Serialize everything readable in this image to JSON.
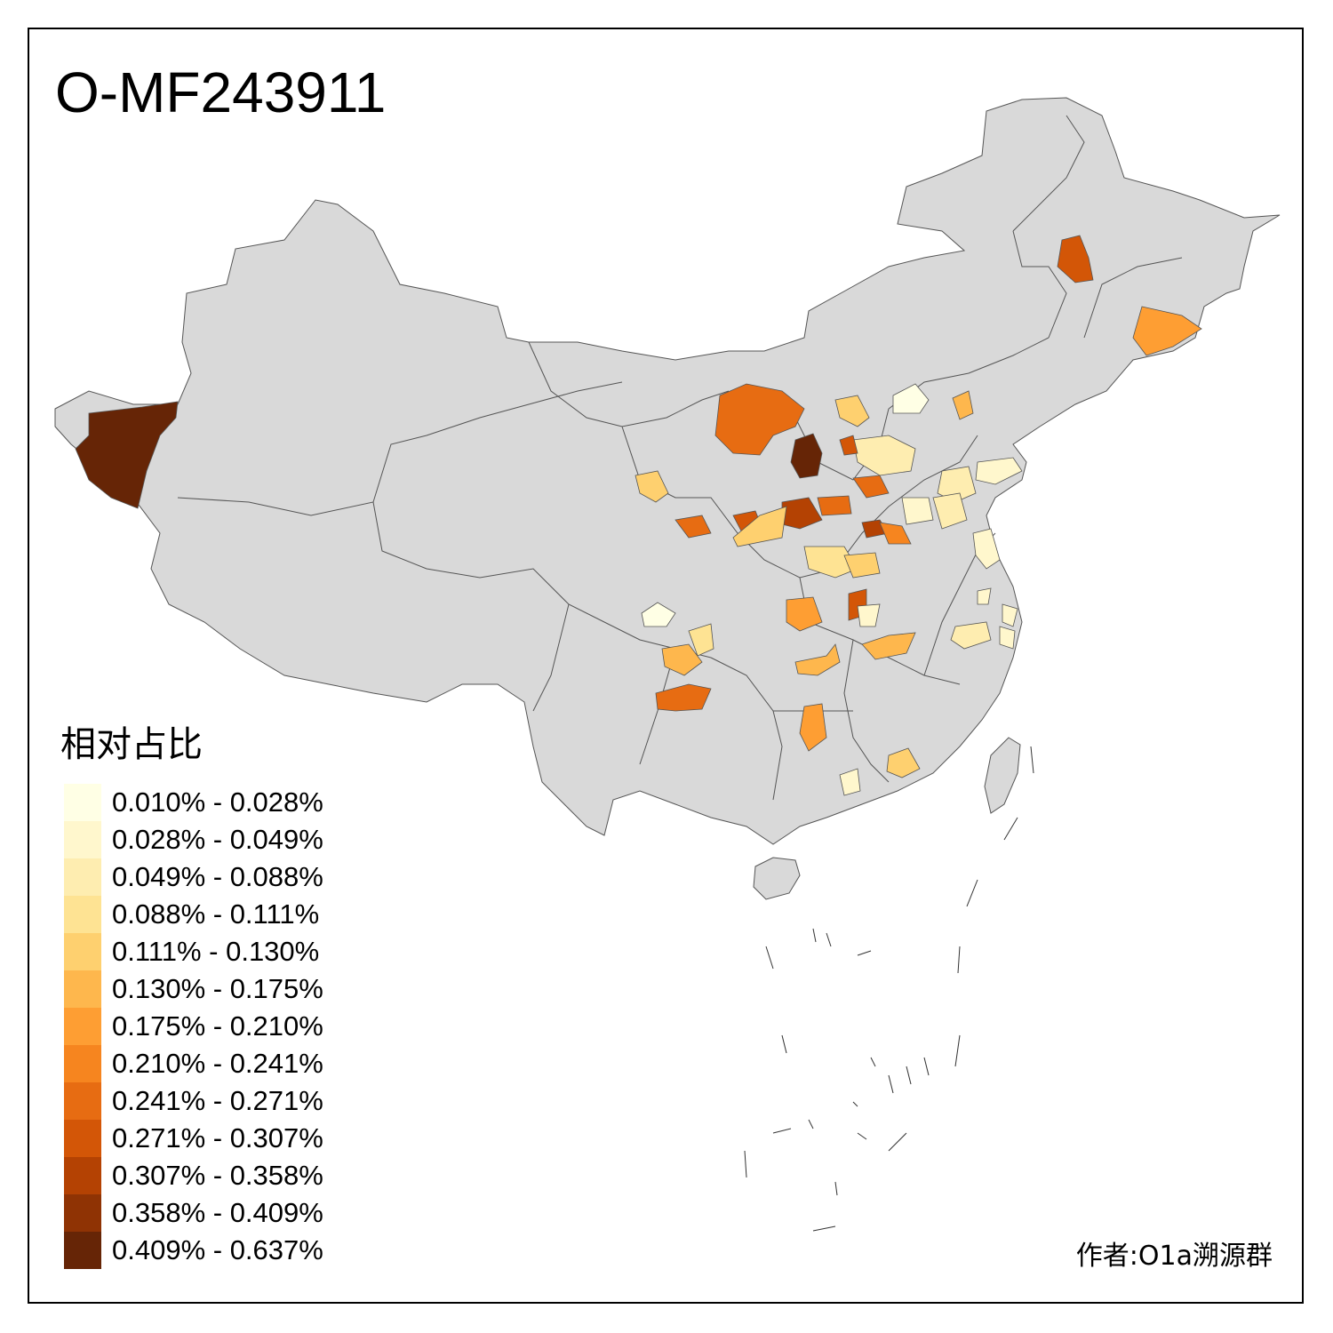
{
  "title": "O-MF243911",
  "legend": {
    "title": "相对占比",
    "items": [
      {
        "label": "0.010% - 0.028%",
        "color": "#FFFFE5"
      },
      {
        "label": "0.028% - 0.049%",
        "color": "#FFF7CD"
      },
      {
        "label": "0.049% - 0.088%",
        "color": "#FEEDB0"
      },
      {
        "label": "0.088% - 0.111%",
        "color": "#FEE393"
      },
      {
        "label": "0.111% - 0.130%",
        "color": "#FED06F"
      },
      {
        "label": "0.130% - 0.175%",
        "color": "#FEB74D"
      },
      {
        "label": "0.175% - 0.210%",
        "color": "#FE9E33"
      },
      {
        "label": "0.210% - 0.241%",
        "color": "#F6851F"
      },
      {
        "label": "0.241% - 0.271%",
        "color": "#E76C12"
      },
      {
        "label": "0.271% - 0.307%",
        "color": "#D35607"
      },
      {
        "label": "0.307% - 0.358%",
        "color": "#B44203"
      },
      {
        "label": "0.358% - 0.409%",
        "color": "#8F3304"
      },
      {
        "label": "0.409% - 0.637%",
        "color": "#662506"
      }
    ]
  },
  "author": "作者:O1a溯源群",
  "colors": {
    "land": "#D9D9D9",
    "border": "#555555"
  }
}
